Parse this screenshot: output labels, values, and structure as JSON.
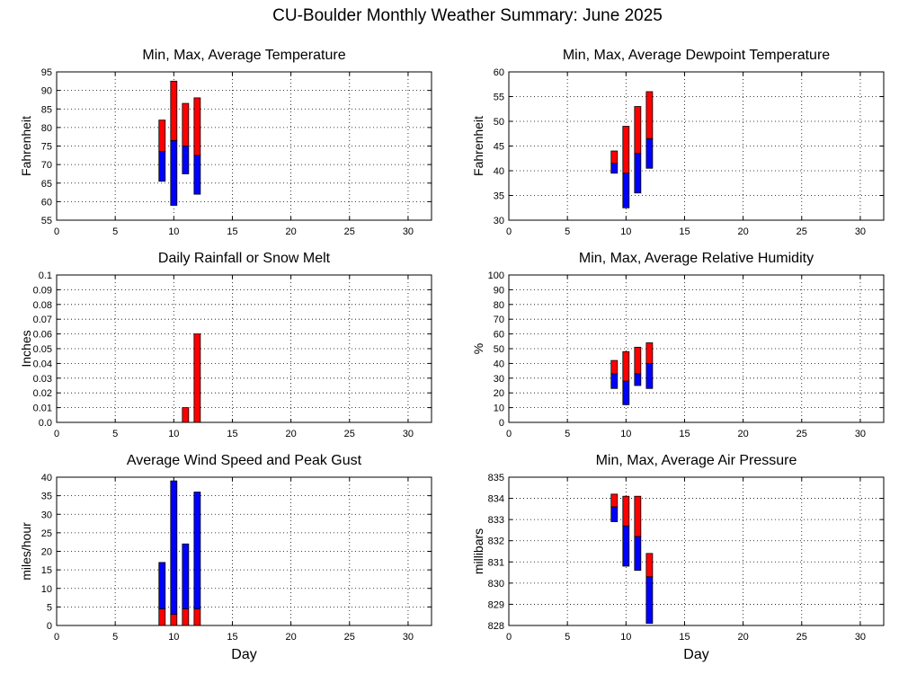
{
  "main_title": "CU-Boulder Monthly Weather Summary: June 2025",
  "colors": {
    "upper": "#ff0000",
    "lower": "#0000ff",
    "edge": "#000000"
  },
  "chart_data": [
    {
      "id": "temp",
      "type": "bar",
      "title": "Min, Max, Average Temperature",
      "ylabel": "Fahrenheit",
      "xlabel": "",
      "xlim": [
        0,
        32
      ],
      "xticks": [
        0,
        5,
        10,
        15,
        20,
        25,
        30
      ],
      "ylim": [
        55,
        95
      ],
      "yticks": [
        "55",
        "60",
        "65",
        "70",
        "75",
        "80",
        "85",
        "90",
        "95"
      ],
      "grid": true,
      "style": "min-avg-max",
      "days": [
        9,
        10,
        11,
        12
      ],
      "min": [
        65.5,
        59,
        67.5,
        62
      ],
      "avg": [
        73.5,
        76.5,
        75,
        72.5
      ],
      "max": [
        82,
        92.5,
        86.5,
        88
      ]
    },
    {
      "id": "dewpoint",
      "type": "bar",
      "title": "Min, Max, Average Dewpoint Temperature",
      "ylabel": "Fahrenheit",
      "xlabel": "",
      "xlim": [
        0,
        32
      ],
      "xticks": [
        0,
        5,
        10,
        15,
        20,
        25,
        30
      ],
      "ylim": [
        30,
        60
      ],
      "yticks": [
        "30",
        "35",
        "40",
        "45",
        "50",
        "55",
        "60"
      ],
      "grid": true,
      "style": "min-avg-max",
      "days": [
        9,
        10,
        11,
        12
      ],
      "min": [
        39.5,
        32.5,
        35.5,
        40.5
      ],
      "avg": [
        41.5,
        39.5,
        43.5,
        46.5
      ],
      "max": [
        44,
        49,
        53,
        56
      ]
    },
    {
      "id": "rain",
      "type": "bar",
      "title": "Daily Rainfall or Snow Melt",
      "ylabel": "Inches",
      "xlabel": "",
      "xlim": [
        0,
        32
      ],
      "xticks": [
        0,
        5,
        10,
        15,
        20,
        25,
        30
      ],
      "ylim": [
        0,
        0.1
      ],
      "yticks": [
        "0.0",
        "0.01",
        "0.02",
        "0.03",
        "0.04",
        "0.05",
        "0.06",
        "0.07",
        "0.08",
        "0.09",
        "0.1"
      ],
      "grid": true,
      "style": "single",
      "days": [
        11,
        12
      ],
      "values": [
        0.01,
        0.06
      ]
    },
    {
      "id": "humidity",
      "type": "bar",
      "title": "Min, Max, Average Relative Humidity",
      "ylabel": "%",
      "xlabel": "",
      "xlim": [
        0,
        32
      ],
      "xticks": [
        0,
        5,
        10,
        15,
        20,
        25,
        30
      ],
      "ylim": [
        0,
        100
      ],
      "yticks": [
        "0",
        "10",
        "20",
        "30",
        "40",
        "50",
        "60",
        "70",
        "80",
        "90",
        "100"
      ],
      "grid": true,
      "style": "min-avg-max",
      "days": [
        9,
        10,
        11,
        12
      ],
      "min": [
        23,
        12,
        25,
        23
      ],
      "avg": [
        33,
        28,
        33,
        40
      ],
      "max": [
        42,
        48,
        51,
        54
      ]
    },
    {
      "id": "wind",
      "type": "bar",
      "title": "Average Wind Speed and Peak Gust",
      "ylabel": "miles/hour",
      "xlabel": "Day",
      "xlim": [
        0,
        32
      ],
      "xticks": [
        0,
        5,
        10,
        15,
        20,
        25,
        30
      ],
      "ylim": [
        0,
        40
      ],
      "yticks": [
        "0",
        "5",
        "10",
        "15",
        "20",
        "25",
        "30",
        "35",
        "40"
      ],
      "grid": true,
      "style": "avg-peak",
      "days": [
        9,
        10,
        11,
        12
      ],
      "average": [
        4.5,
        3,
        4.5,
        4.5
      ],
      "peak": [
        17,
        39,
        22,
        36
      ]
    },
    {
      "id": "pressure",
      "type": "bar",
      "title": "Min, Max, Average Air Pressure",
      "ylabel": "millibars",
      "xlabel": "Day",
      "xlim": [
        0,
        32
      ],
      "xticks": [
        0,
        5,
        10,
        15,
        20,
        25,
        30
      ],
      "ylim": [
        828,
        835
      ],
      "yticks": [
        "828",
        "829",
        "830",
        "831",
        "832",
        "833",
        "834",
        "835"
      ],
      "grid": true,
      "style": "min-avg-max",
      "days": [
        9,
        10,
        11,
        12
      ],
      "min": [
        832.9,
        830.8,
        830.6,
        828.1
      ],
      "avg": [
        833.6,
        832.7,
        832.2,
        830.3
      ],
      "max": [
        834.2,
        834.1,
        834.1,
        831.4
      ]
    }
  ]
}
